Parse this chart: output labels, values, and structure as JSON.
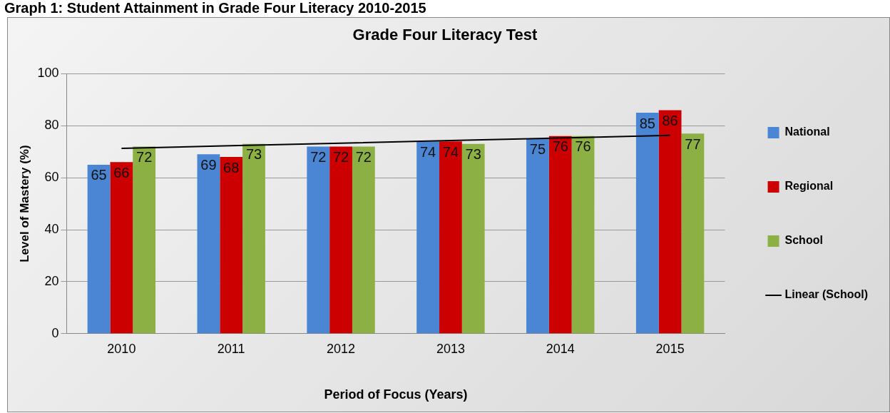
{
  "chart_data": {
    "type": "bar",
    "title": "Graph 1: Student Attainment in Grade Four Literacy 2010-2015",
    "subtitle": "Grade Four Literacy Test",
    "xlabel": "Period of Focus (Years)",
    "ylabel": "Level of Mastery (%)",
    "categories": [
      "2010",
      "2011",
      "2012",
      "2013",
      "2014",
      "2015"
    ],
    "series": [
      {
        "name": "National",
        "color": "#4a86d4",
        "values": [
          65,
          69,
          72,
          74,
          75,
          85
        ],
        "value_labels": [
          "65",
          "69",
          "72",
          "74",
          "75",
          "85"
        ]
      },
      {
        "name": "Regional",
        "color": "#cc0000",
        "values": [
          66,
          68,
          72,
          74,
          76,
          86
        ],
        "value_labels": [
          "66",
          "68",
          "72",
          "74",
          "76",
          "86"
        ]
      },
      {
        "name": "School",
        "color": "#8cb043",
        "values": [
          72,
          73,
          72,
          73,
          76,
          77
        ],
        "value_labels": [
          "72",
          "73",
          "72",
          "73",
          "76",
          "77"
        ]
      },
      {
        "name": "Linear (School)",
        "type": "line",
        "color": "#000000",
        "values": [
          71.3,
          72.3,
          73.3,
          74.3,
          75.3,
          76.3
        ]
      }
    ],
    "ylim": [
      0,
      100
    ],
    "yticks": [
      0,
      20,
      40,
      60,
      80,
      100
    ],
    "grid": "y",
    "legend": "right",
    "marker": "none"
  }
}
